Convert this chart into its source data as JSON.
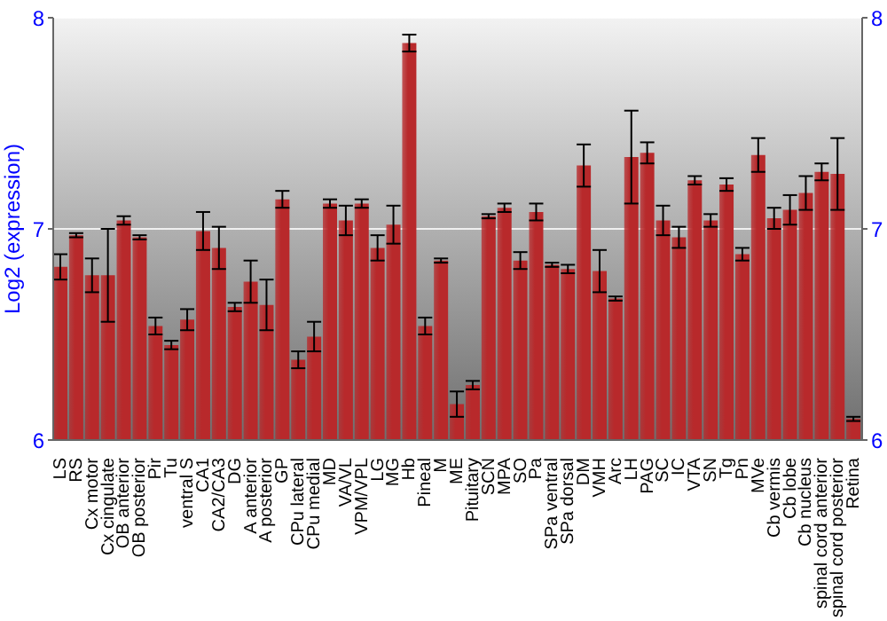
{
  "chart_data": {
    "type": "bar",
    "ylabel": "Log2 (expression)",
    "categories": [
      "LS",
      "RS",
      "Cx motor",
      "Cx cingulate",
      "OB anterior",
      "OB posterior",
      "Pir",
      "Tu",
      "ventral S",
      "CA1",
      "CA2/CA3",
      "DG",
      "A anterior",
      "A posterior",
      "GP",
      "CPu lateral",
      "CPu medial",
      "MD",
      "VA/VL",
      "VPM/VPL",
      "LG",
      "MG",
      "Hb",
      "Pineal",
      "M",
      "ME",
      "Pituitary",
      "SCN",
      "MPA",
      "SO",
      "Pa",
      "SPa ventral",
      "SPa dorsal",
      "DM",
      "VMH",
      "Arc",
      "LH",
      "PAG",
      "SC",
      "IC",
      "VTA",
      "SN",
      "Tg",
      "Pn",
      "MVe",
      "Cb vermis",
      "Cb lobe",
      "Cb nucleus",
      "spinal cord anterior",
      "spinal cord posterior",
      "Retina"
    ],
    "series": [
      {
        "color": "#b8292b",
        "values": [
          6.82,
          6.97,
          6.78,
          6.78,
          7.04,
          6.96,
          6.54,
          6.45,
          6.57,
          6.99,
          6.91,
          6.63,
          6.75,
          6.64,
          7.14,
          6.38,
          6.49,
          7.12,
          7.04,
          7.12,
          6.91,
          7.02,
          7.88,
          6.54,
          6.85,
          6.17,
          6.26,
          7.06,
          7.1,
          6.85,
          7.08,
          6.83,
          6.81,
          7.3,
          6.8,
          6.67,
          7.34,
          7.36,
          7.04,
          6.96,
          7.23,
          7.04,
          7.21,
          6.88,
          7.35,
          7.05,
          7.09,
          7.17,
          7.27,
          7.26,
          6.1
        ],
        "errors": [
          0.06,
          0.01,
          0.08,
          0.22,
          0.02,
          0.01,
          0.04,
          0.02,
          0.05,
          0.09,
          0.1,
          0.02,
          0.1,
          0.12,
          0.04,
          0.04,
          0.07,
          0.02,
          0.07,
          0.02,
          0.06,
          0.09,
          0.04,
          0.04,
          0.01,
          0.06,
          0.02,
          0.01,
          0.02,
          0.04,
          0.04,
          0.01,
          0.02,
          0.1,
          0.1,
          0.01,
          0.22,
          0.05,
          0.07,
          0.05,
          0.02,
          0.03,
          0.03,
          0.03,
          0.08,
          0.05,
          0.07,
          0.08,
          0.04,
          0.17,
          0.01
        ]
      }
    ],
    "ylim": [
      6,
      8
    ],
    "yticks": [
      6,
      7,
      8
    ],
    "y2lim": [
      6,
      8
    ],
    "y2ticks": [
      6,
      7,
      8
    ],
    "grid": "y"
  }
}
